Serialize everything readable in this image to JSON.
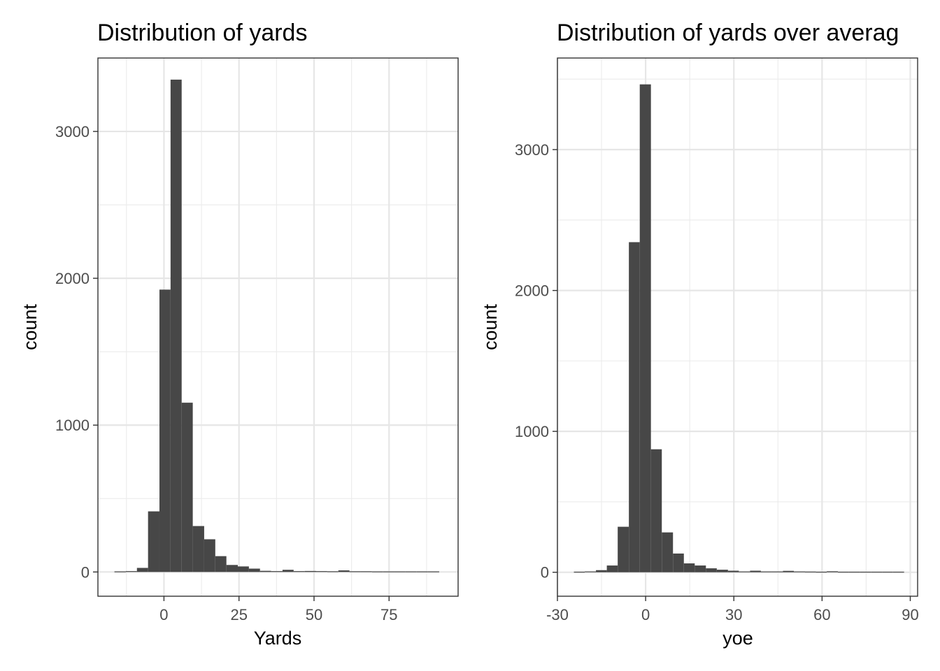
{
  "chart_data": [
    {
      "type": "bar",
      "title": "Distribution of yards",
      "xlabel": "Yards",
      "ylabel": "count",
      "xlim": [
        -22,
        98
      ],
      "ylim": [
        -165,
        3500
      ],
      "x_ticks": [
        0,
        25,
        50,
        75
      ],
      "x_tick_labels": [
        "0",
        "25",
        "50",
        "75"
      ],
      "y_ticks": [
        0,
        1000,
        2000,
        3000
      ],
      "y_tick_labels": [
        "0",
        "1000",
        "2000",
        "3000"
      ],
      "grid": true,
      "bar_color": "#474747",
      "bins": [
        {
          "x0": -16.5,
          "x1": -12.7,
          "count": 1
        },
        {
          "x0": -12.7,
          "x1": -9.0,
          "count": 3
        },
        {
          "x0": -9.0,
          "x1": -5.3,
          "count": 25
        },
        {
          "x0": -5.3,
          "x1": -1.5,
          "count": 410
        },
        {
          "x0": -1.5,
          "x1": 2.2,
          "count": 1920
        },
        {
          "x0": 2.2,
          "x1": 5.9,
          "count": 3350
        },
        {
          "x0": 5.9,
          "x1": 9.6,
          "count": 1150
        },
        {
          "x0": 9.6,
          "x1": 13.4,
          "count": 310
        },
        {
          "x0": 13.4,
          "x1": 17.1,
          "count": 220
        },
        {
          "x0": 17.1,
          "x1": 20.8,
          "count": 105
        },
        {
          "x0": 20.8,
          "x1": 24.6,
          "count": 45
        },
        {
          "x0": 24.6,
          "x1": 28.3,
          "count": 35
        },
        {
          "x0": 28.3,
          "x1": 32.0,
          "count": 20
        },
        {
          "x0": 32.0,
          "x1": 35.7,
          "count": 5
        },
        {
          "x0": 35.7,
          "x1": 39.5,
          "count": 3
        },
        {
          "x0": 39.5,
          "x1": 43.2,
          "count": 12
        },
        {
          "x0": 43.2,
          "x1": 46.9,
          "count": 3
        },
        {
          "x0": 46.9,
          "x1": 50.7,
          "count": 4
        },
        {
          "x0": 50.7,
          "x1": 54.4,
          "count": 3
        },
        {
          "x0": 54.4,
          "x1": 58.1,
          "count": 2
        },
        {
          "x0": 58.1,
          "x1": 61.8,
          "count": 8
        },
        {
          "x0": 61.8,
          "x1": 65.6,
          "count": 2
        },
        {
          "x0": 65.6,
          "x1": 69.3,
          "count": 2
        },
        {
          "x0": 69.3,
          "x1": 73.0,
          "count": 1
        },
        {
          "x0": 73.0,
          "x1": 76.8,
          "count": 1
        },
        {
          "x0": 76.8,
          "x1": 80.5,
          "count": 1
        },
        {
          "x0": 80.5,
          "x1": 84.2,
          "count": 1
        },
        {
          "x0": 84.2,
          "x1": 87.9,
          "count": 1
        },
        {
          "x0": 87.9,
          "x1": 91.7,
          "count": 1
        }
      ]
    },
    {
      "type": "bar",
      "title": "Distribution of yards over averag",
      "xlabel": "yoe",
      "ylabel": "count",
      "xlim": [
        -30,
        92.5
      ],
      "ylim": [
        -170,
        3650
      ],
      "x_ticks": [
        -30,
        0,
        30,
        60,
        90
      ],
      "x_tick_labels": [
        "-30",
        "0",
        "30",
        "60",
        "90"
      ],
      "y_ticks": [
        0,
        1000,
        2000,
        3000
      ],
      "y_tick_labels": [
        "0",
        "1000",
        "2000",
        "3000"
      ],
      "grid": true,
      "bar_color": "#474747",
      "bins": [
        {
          "x0": -24.4,
          "x1": -20.7,
          "count": 1
        },
        {
          "x0": -20.7,
          "x1": -16.9,
          "count": 3
        },
        {
          "x0": -16.9,
          "x1": -13.2,
          "count": 12
        },
        {
          "x0": -13.2,
          "x1": -9.5,
          "count": 45
        },
        {
          "x0": -9.5,
          "x1": -5.7,
          "count": 320
        },
        {
          "x0": -5.7,
          "x1": -2.0,
          "count": 2340
        },
        {
          "x0": -2.0,
          "x1": 1.8,
          "count": 3460
        },
        {
          "x0": 1.8,
          "x1": 5.5,
          "count": 870
        },
        {
          "x0": 5.5,
          "x1": 9.3,
          "count": 280
        },
        {
          "x0": 9.3,
          "x1": 13.0,
          "count": 130
        },
        {
          "x0": 13.0,
          "x1": 16.7,
          "count": 60
        },
        {
          "x0": 16.7,
          "x1": 20.5,
          "count": 45
        },
        {
          "x0": 20.5,
          "x1": 24.2,
          "count": 25
        },
        {
          "x0": 24.2,
          "x1": 28.0,
          "count": 15
        },
        {
          "x0": 28.0,
          "x1": 31.7,
          "count": 8
        },
        {
          "x0": 31.7,
          "x1": 35.5,
          "count": 3
        },
        {
          "x0": 35.5,
          "x1": 39.2,
          "count": 8
        },
        {
          "x0": 39.2,
          "x1": 42.9,
          "count": 3
        },
        {
          "x0": 42.9,
          "x1": 46.7,
          "count": 3
        },
        {
          "x0": 46.7,
          "x1": 50.4,
          "count": 7
        },
        {
          "x0": 50.4,
          "x1": 54.2,
          "count": 3
        },
        {
          "x0": 54.2,
          "x1": 57.9,
          "count": 2
        },
        {
          "x0": 57.9,
          "x1": 61.6,
          "count": 1
        },
        {
          "x0": 61.6,
          "x1": 65.4,
          "count": 4
        },
        {
          "x0": 65.4,
          "x1": 69.1,
          "count": 1
        },
        {
          "x0": 69.1,
          "x1": 72.9,
          "count": 1
        },
        {
          "x0": 72.9,
          "x1": 76.6,
          "count": 1
        },
        {
          "x0": 76.6,
          "x1": 80.4,
          "count": 1
        },
        {
          "x0": 80.4,
          "x1": 84.1,
          "count": 1
        },
        {
          "x0": 84.1,
          "x1": 87.9,
          "count": 1
        }
      ]
    }
  ]
}
